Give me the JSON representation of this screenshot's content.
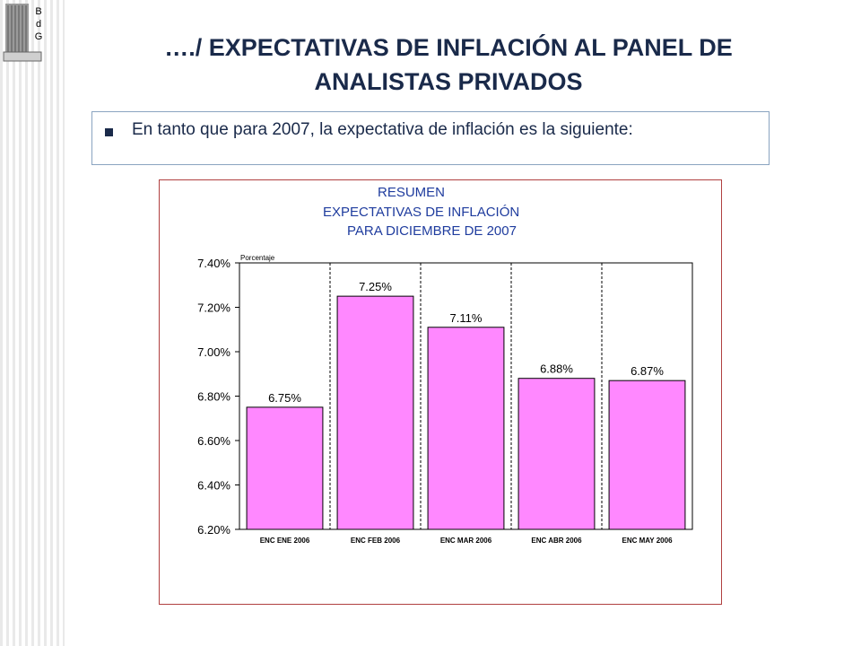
{
  "slide": {
    "title_line1": "…./ EXPECTATIVAS DE INFLACIÓN AL PANEL DE",
    "title_line2": "ANALISTAS PRIVADOS",
    "bullet_text": "En tanto que para 2007, la expectativa de inflación es la siguiente:",
    "logo_letters": [
      "B",
      "d",
      "G"
    ]
  },
  "colors": {
    "bar_fill": "#ff88ff",
    "title_text": "#1a2a4a",
    "chart_title": "#1f3c9e",
    "frame_border": "#b04040"
  },
  "chart_data": {
    "type": "bar",
    "title_lines": [
      "RESUMEN",
      "EXPECTATIVAS DE INFLACIÓN",
      "PARA DICIEMBRE DE 2007"
    ],
    "ylabel": "Porcentaje",
    "categories": [
      "ENC ENE 2006",
      "ENC FEB 2006",
      "ENC MAR 2006",
      "ENC ABR 2006",
      "ENC MAY 2006"
    ],
    "values": [
      6.75,
      7.25,
      7.11,
      6.88,
      6.87
    ],
    "value_labels": [
      "6.75%",
      "7.25%",
      "7.11%",
      "6.88%",
      "6.87%"
    ],
    "ylim": [
      6.2,
      7.4
    ],
    "yticks": [
      6.2,
      6.4,
      6.6,
      6.8,
      7.0,
      7.2,
      7.4
    ],
    "ytick_labels": [
      "6.20%",
      "6.40%",
      "6.60%",
      "6.80%",
      "7.00%",
      "7.20%",
      "7.40%"
    ],
    "grid": false,
    "category_separators": "dashed"
  }
}
